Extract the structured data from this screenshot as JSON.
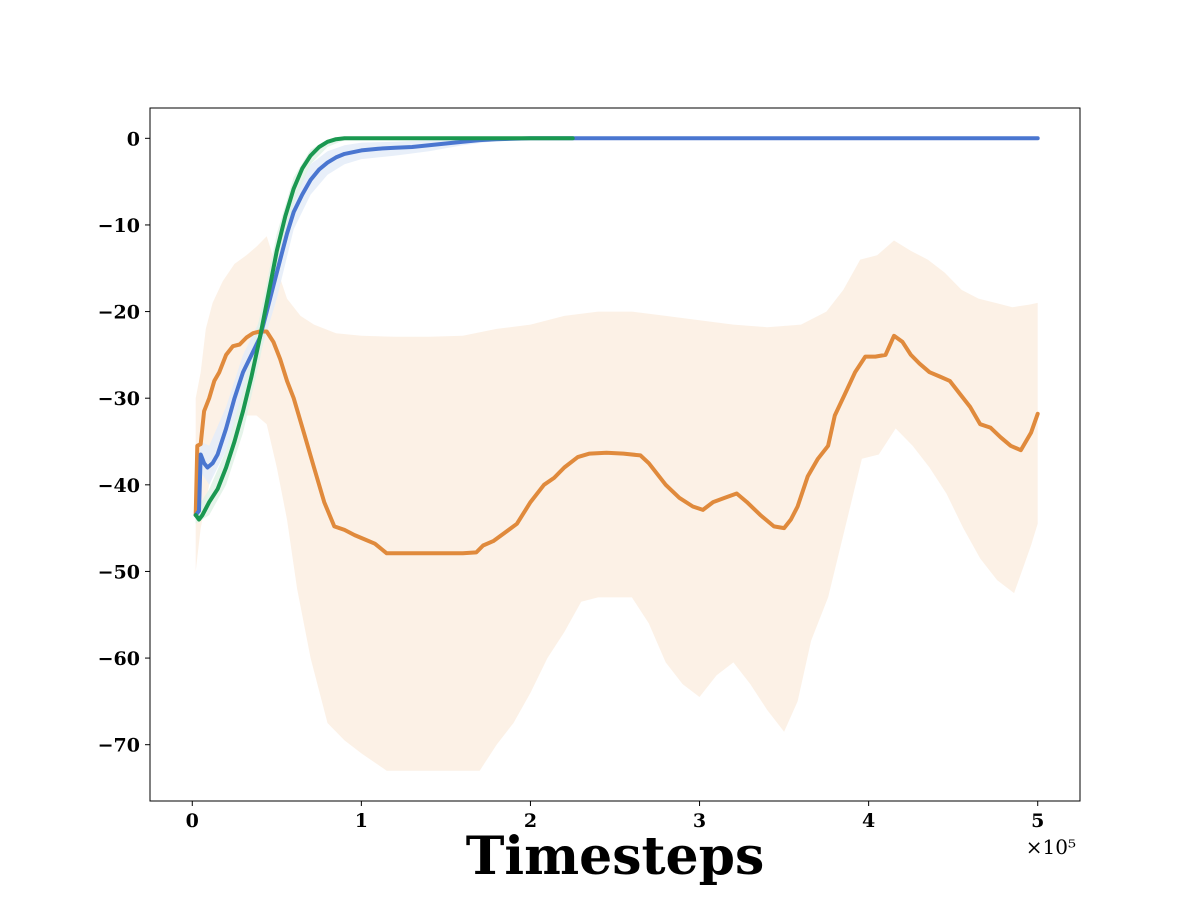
{
  "chart_data": {
    "type": "line",
    "title": "",
    "xlabel": "Timesteps",
    "ylabel": "",
    "x_offset_label": "×10⁵",
    "xlim": [
      -0.25,
      5.25
    ],
    "ylim": [
      -76.5,
      3.5
    ],
    "x_ticks": [
      0,
      1,
      2,
      3,
      4,
      5
    ],
    "x_tick_labels": [
      "0",
      "1",
      "2",
      "3",
      "4",
      "5"
    ],
    "y_ticks": [
      0,
      -10,
      -20,
      -30,
      -40,
      -50,
      -60,
      -70
    ],
    "y_tick_labels": [
      "0",
      "−10",
      "−20",
      "−30",
      "−40",
      "−50",
      "−60",
      "−70"
    ],
    "grid": false,
    "legend": "none",
    "series": [
      {
        "color": "#e08a3c",
        "band_color": "#fbeee2",
        "points": [
          [
            0.02,
            -43.5
          ],
          [
            0.03,
            -35.5
          ],
          [
            0.05,
            -35.3
          ],
          [
            0.07,
            -31.5
          ],
          [
            0.1,
            -30.0
          ],
          [
            0.13,
            -28.0
          ],
          [
            0.16,
            -27.0
          ],
          [
            0.2,
            -25.0
          ],
          [
            0.24,
            -24.0
          ],
          [
            0.28,
            -23.8
          ],
          [
            0.32,
            -23.0
          ],
          [
            0.36,
            -22.5
          ],
          [
            0.4,
            -22.3
          ],
          [
            0.44,
            -22.3
          ],
          [
            0.48,
            -23.5
          ],
          [
            0.52,
            -25.5
          ],
          [
            0.56,
            -28.0
          ],
          [
            0.6,
            -30.0
          ],
          [
            0.66,
            -34.0
          ],
          [
            0.72,
            -38.0
          ],
          [
            0.78,
            -42.0
          ],
          [
            0.84,
            -44.8
          ],
          [
            0.9,
            -45.2
          ],
          [
            0.96,
            -45.8
          ],
          [
            1.02,
            -46.3
          ],
          [
            1.08,
            -46.8
          ],
          [
            1.15,
            -47.9
          ],
          [
            1.3,
            -47.9
          ],
          [
            1.45,
            -47.9
          ],
          [
            1.6,
            -47.9
          ],
          [
            1.68,
            -47.8
          ],
          [
            1.72,
            -47.0
          ],
          [
            1.78,
            -46.5
          ],
          [
            1.85,
            -45.5
          ],
          [
            1.92,
            -44.5
          ],
          [
            2.0,
            -42.0
          ],
          [
            2.08,
            -40.0
          ],
          [
            2.14,
            -39.2
          ],
          [
            2.2,
            -38.0
          ],
          [
            2.28,
            -36.8
          ],
          [
            2.35,
            -36.4
          ],
          [
            2.45,
            -36.3
          ],
          [
            2.55,
            -36.4
          ],
          [
            2.65,
            -36.6
          ],
          [
            2.7,
            -37.5
          ],
          [
            2.8,
            -40.0
          ],
          [
            2.88,
            -41.5
          ],
          [
            2.96,
            -42.5
          ],
          [
            3.02,
            -42.9
          ],
          [
            3.08,
            -42.0
          ],
          [
            3.15,
            -41.5
          ],
          [
            3.22,
            -41.0
          ],
          [
            3.28,
            -42.0
          ],
          [
            3.36,
            -43.5
          ],
          [
            3.44,
            -44.8
          ],
          [
            3.5,
            -45.0
          ],
          [
            3.54,
            -44.0
          ],
          [
            3.58,
            -42.5
          ],
          [
            3.64,
            -39.0
          ],
          [
            3.7,
            -37.0
          ],
          [
            3.76,
            -35.5
          ],
          [
            3.8,
            -32.0
          ],
          [
            3.86,
            -29.5
          ],
          [
            3.92,
            -27.0
          ],
          [
            3.98,
            -25.2
          ],
          [
            4.04,
            -25.2
          ],
          [
            4.1,
            -25.0
          ],
          [
            4.15,
            -22.8
          ],
          [
            4.2,
            -23.5
          ],
          [
            4.25,
            -25.0
          ],
          [
            4.3,
            -26.0
          ],
          [
            4.36,
            -27.0
          ],
          [
            4.42,
            -27.5
          ],
          [
            4.48,
            -28.0
          ],
          [
            4.54,
            -29.5
          ],
          [
            4.6,
            -31.0
          ],
          [
            4.66,
            -33.0
          ],
          [
            4.72,
            -33.4
          ],
          [
            4.78,
            -34.5
          ],
          [
            4.84,
            -35.5
          ],
          [
            4.9,
            -36.0
          ],
          [
            4.96,
            -34.0
          ],
          [
            5.0,
            -31.8
          ]
        ],
        "band_upper": [
          [
            0.02,
            -30.0
          ],
          [
            0.05,
            -27.0
          ],
          [
            0.08,
            -22.0
          ],
          [
            0.12,
            -19.0
          ],
          [
            0.18,
            -16.5
          ],
          [
            0.25,
            -14.5
          ],
          [
            0.32,
            -13.5
          ],
          [
            0.38,
            -12.5
          ],
          [
            0.44,
            -11.3
          ],
          [
            0.5,
            -15.0
          ],
          [
            0.56,
            -18.5
          ],
          [
            0.64,
            -20.5
          ],
          [
            0.72,
            -21.5
          ],
          [
            0.85,
            -22.5
          ],
          [
            1.0,
            -22.8
          ],
          [
            1.2,
            -22.9
          ],
          [
            1.4,
            -22.9
          ],
          [
            1.6,
            -22.8
          ],
          [
            1.8,
            -22.0
          ],
          [
            2.0,
            -21.5
          ],
          [
            2.2,
            -20.5
          ],
          [
            2.4,
            -20.0
          ],
          [
            2.6,
            -20.0
          ],
          [
            2.8,
            -20.5
          ],
          [
            3.0,
            -21.0
          ],
          [
            3.2,
            -21.5
          ],
          [
            3.4,
            -21.8
          ],
          [
            3.6,
            -21.5
          ],
          [
            3.75,
            -20.0
          ],
          [
            3.85,
            -17.5
          ],
          [
            3.95,
            -14.0
          ],
          [
            4.05,
            -13.5
          ],
          [
            4.15,
            -11.8
          ],
          [
            4.25,
            -13.0
          ],
          [
            4.35,
            -14.0
          ],
          [
            4.45,
            -15.5
          ],
          [
            4.55,
            -17.5
          ],
          [
            4.65,
            -18.5
          ],
          [
            4.75,
            -19.0
          ],
          [
            4.85,
            -19.5
          ],
          [
            4.95,
            -19.2
          ],
          [
            5.0,
            -19.0
          ]
        ],
        "band_lower": [
          [
            0.02,
            -50.0
          ],
          [
            0.05,
            -45.0
          ],
          [
            0.1,
            -40.0
          ],
          [
            0.16,
            -36.0
          ],
          [
            0.22,
            -33.0
          ],
          [
            0.3,
            -32.0
          ],
          [
            0.38,
            -32.0
          ],
          [
            0.44,
            -33.0
          ],
          [
            0.5,
            -38.0
          ],
          [
            0.56,
            -44.0
          ],
          [
            0.62,
            -52.0
          ],
          [
            0.7,
            -60.0
          ],
          [
            0.8,
            -67.5
          ],
          [
            0.9,
            -69.5
          ],
          [
            1.0,
            -71.0
          ],
          [
            1.15,
            -73.0
          ],
          [
            1.4,
            -73.0
          ],
          [
            1.7,
            -73.0
          ],
          [
            1.8,
            -70.0
          ],
          [
            1.9,
            -67.5
          ],
          [
            2.0,
            -64.0
          ],
          [
            2.1,
            -60.0
          ],
          [
            2.2,
            -57.0
          ],
          [
            2.3,
            -53.5
          ],
          [
            2.4,
            -53.0
          ],
          [
            2.6,
            -53.0
          ],
          [
            2.7,
            -56.0
          ],
          [
            2.8,
            -60.5
          ],
          [
            2.9,
            -63.0
          ],
          [
            3.0,
            -64.5
          ],
          [
            3.1,
            -62.0
          ],
          [
            3.2,
            -60.5
          ],
          [
            3.3,
            -63.0
          ],
          [
            3.4,
            -66.0
          ],
          [
            3.5,
            -68.5
          ],
          [
            3.58,
            -65.0
          ],
          [
            3.66,
            -58.0
          ],
          [
            3.76,
            -53.0
          ],
          [
            3.86,
            -45.0
          ],
          [
            3.96,
            -37.0
          ],
          [
            4.06,
            -36.5
          ],
          [
            4.16,
            -33.5
          ],
          [
            4.26,
            -35.5
          ],
          [
            4.36,
            -38.0
          ],
          [
            4.46,
            -41.0
          ],
          [
            4.56,
            -45.0
          ],
          [
            4.66,
            -48.5
          ],
          [
            4.76,
            -51.0
          ],
          [
            4.86,
            -52.5
          ],
          [
            4.96,
            -47.0
          ],
          [
            5.0,
            -44.5
          ]
        ]
      },
      {
        "color": "#4a76d0",
        "band_color": "#e4ecf8",
        "points": [
          [
            0.02,
            -43.5
          ],
          [
            0.04,
            -43.0
          ],
          [
            0.05,
            -36.5
          ],
          [
            0.07,
            -37.5
          ],
          [
            0.09,
            -38.0
          ],
          [
            0.12,
            -37.5
          ],
          [
            0.15,
            -36.5
          ],
          [
            0.2,
            -33.5
          ],
          [
            0.25,
            -30.0
          ],
          [
            0.3,
            -27.0
          ],
          [
            0.35,
            -25.0
          ],
          [
            0.4,
            -23.0
          ],
          [
            0.44,
            -20.0
          ],
          [
            0.48,
            -17.0
          ],
          [
            0.52,
            -14.0
          ],
          [
            0.56,
            -11.0
          ],
          [
            0.6,
            -8.5
          ],
          [
            0.65,
            -6.5
          ],
          [
            0.7,
            -4.8
          ],
          [
            0.75,
            -3.6
          ],
          [
            0.8,
            -2.8
          ],
          [
            0.85,
            -2.2
          ],
          [
            0.9,
            -1.8
          ],
          [
            1.0,
            -1.4
          ],
          [
            1.1,
            -1.2
          ],
          [
            1.2,
            -1.1
          ],
          [
            1.3,
            -1.0
          ],
          [
            1.4,
            -0.8
          ],
          [
            1.5,
            -0.6
          ],
          [
            1.6,
            -0.4
          ],
          [
            1.7,
            -0.2
          ],
          [
            1.8,
            -0.1
          ],
          [
            2.0,
            0.0
          ],
          [
            2.5,
            0.0
          ],
          [
            3.0,
            0.0
          ],
          [
            3.5,
            0.0
          ],
          [
            4.0,
            0.0
          ],
          [
            4.5,
            0.0
          ],
          [
            5.0,
            0.0
          ]
        ],
        "band_upper": [
          [
            0.02,
            -42.0
          ],
          [
            0.05,
            -35.0
          ],
          [
            0.1,
            -35.5
          ],
          [
            0.2,
            -31.0
          ],
          [
            0.3,
            -25.0
          ],
          [
            0.4,
            -21.0
          ],
          [
            0.5,
            -14.0
          ],
          [
            0.6,
            -6.5
          ],
          [
            0.7,
            -3.0
          ],
          [
            0.8,
            -1.5
          ],
          [
            0.9,
            -0.8
          ],
          [
            1.0,
            -0.5
          ],
          [
            1.2,
            -0.4
          ],
          [
            1.4,
            -0.2
          ],
          [
            1.6,
            -0.1
          ],
          [
            1.8,
            0.0
          ],
          [
            5.0,
            0.0
          ]
        ],
        "band_lower": [
          [
            0.02,
            -44.5
          ],
          [
            0.05,
            -38.5
          ],
          [
            0.1,
            -40.0
          ],
          [
            0.2,
            -36.0
          ],
          [
            0.3,
            -29.5
          ],
          [
            0.4,
            -25.0
          ],
          [
            0.5,
            -18.5
          ],
          [
            0.6,
            -10.5
          ],
          [
            0.7,
            -6.5
          ],
          [
            0.8,
            -4.2
          ],
          [
            0.9,
            -3.0
          ],
          [
            1.0,
            -2.4
          ],
          [
            1.2,
            -2.0
          ],
          [
            1.4,
            -1.5
          ],
          [
            1.6,
            -0.8
          ],
          [
            1.8,
            -0.3
          ],
          [
            2.0,
            0.0
          ],
          [
            5.0,
            0.0
          ]
        ]
      },
      {
        "color": "#1a9850",
        "band_color": "#e0f2e6",
        "points": [
          [
            0.02,
            -43.5
          ],
          [
            0.04,
            -44.0
          ],
          [
            0.06,
            -43.5
          ],
          [
            0.1,
            -42.0
          ],
          [
            0.15,
            -40.5
          ],
          [
            0.2,
            -38.0
          ],
          [
            0.25,
            -35.0
          ],
          [
            0.3,
            -31.5
          ],
          [
            0.35,
            -27.5
          ],
          [
            0.4,
            -23.0
          ],
          [
            0.45,
            -18.0
          ],
          [
            0.5,
            -13.0
          ],
          [
            0.55,
            -9.0
          ],
          [
            0.6,
            -5.8
          ],
          [
            0.65,
            -3.5
          ],
          [
            0.7,
            -2.0
          ],
          [
            0.75,
            -1.0
          ],
          [
            0.8,
            -0.4
          ],
          [
            0.85,
            -0.1
          ],
          [
            0.9,
            0.0
          ],
          [
            1.0,
            0.0
          ],
          [
            1.5,
            0.0
          ],
          [
            2.0,
            0.0
          ],
          [
            2.25,
            0.0
          ]
        ],
        "band_upper": [
          [
            0.02,
            -43.0
          ],
          [
            0.1,
            -40.5
          ],
          [
            0.2,
            -36.0
          ],
          [
            0.3,
            -29.0
          ],
          [
            0.4,
            -20.5
          ],
          [
            0.5,
            -11.0
          ],
          [
            0.6,
            -4.5
          ],
          [
            0.7,
            -1.3
          ],
          [
            0.8,
            -0.2
          ],
          [
            0.9,
            0.0
          ],
          [
            2.25,
            0.0
          ]
        ],
        "band_lower": [
          [
            0.02,
            -44.5
          ],
          [
            0.1,
            -43.5
          ],
          [
            0.2,
            -40.0
          ],
          [
            0.3,
            -34.0
          ],
          [
            0.4,
            -25.5
          ],
          [
            0.5,
            -15.5
          ],
          [
            0.6,
            -7.5
          ],
          [
            0.7,
            -3.0
          ],
          [
            0.8,
            -1.0
          ],
          [
            0.9,
            -0.2
          ],
          [
            1.0,
            0.0
          ],
          [
            2.25,
            0.0
          ]
        ]
      }
    ]
  }
}
